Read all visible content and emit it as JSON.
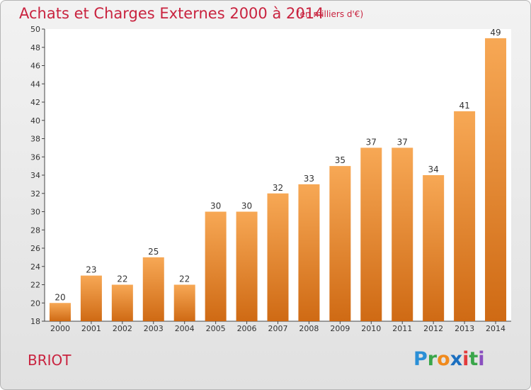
{
  "header": {
    "title": "Achats et Charges Externes 2000 à 2014",
    "subtitle": "(en milliers d'€)"
  },
  "footer": {
    "commune": "BRIOT",
    "logo_text": "Proxiti"
  },
  "colors": {
    "title": "#c9233f",
    "bar_light": "#f7a855",
    "bar_dark": "#cf6a14"
  },
  "chart_data": {
    "type": "bar",
    "title": "Achats et Charges Externes 2000 à 2014",
    "subtitle": "(en milliers d'€)",
    "xlabel": "",
    "ylabel": "",
    "categories": [
      "2000",
      "2001",
      "2002",
      "2003",
      "2004",
      "2005",
      "2006",
      "2007",
      "2008",
      "2009",
      "2010",
      "2011",
      "2012",
      "2013",
      "2014"
    ],
    "values": [
      20,
      23,
      22,
      25,
      22,
      30,
      30,
      32,
      33,
      35,
      37,
      37,
      34,
      41,
      49
    ],
    "ylim": [
      18,
      50
    ],
    "yticks": [
      18,
      20,
      22,
      24,
      26,
      28,
      30,
      32,
      34,
      36,
      38,
      40,
      42,
      44,
      46,
      48,
      50
    ],
    "grid": false,
    "data_labels": true
  }
}
